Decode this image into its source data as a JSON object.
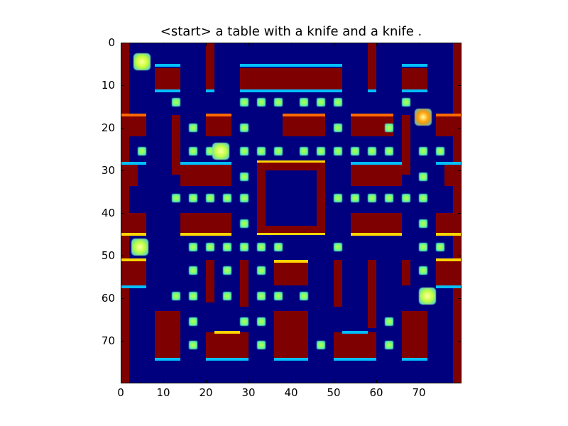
{
  "title": "<start> a table with a knife and a knife .",
  "axes": {
    "x_ticks": [
      "0",
      "10",
      "20",
      "30",
      "40",
      "50",
      "60",
      "70"
    ],
    "y_ticks": [
      "0",
      "10",
      "20",
      "30",
      "40",
      "50",
      "60",
      "70"
    ],
    "xlim": [
      0,
      80
    ],
    "ylim": [
      80,
      0
    ]
  },
  "colors": {
    "background": "#00007f",
    "wall": "#7f0000",
    "pellet": "#7dff7a",
    "edge_cyan": "#00bfff",
    "edge_yellow": "#ffd400"
  },
  "game": {
    "sprites": [
      {
        "name": "player-sprite",
        "x": 5,
        "y": 4.5,
        "color": "#c8ff30"
      },
      {
        "name": "ghost-sprite-1",
        "x": 71,
        "y": 17.5,
        "color": "#ff9a00"
      },
      {
        "name": "ghost-sprite-2",
        "x": 23.5,
        "y": 25.5,
        "color": "#c0ff40"
      },
      {
        "name": "ghost-sprite-3",
        "x": 4.5,
        "y": 48,
        "color": "#b8ff40"
      },
      {
        "name": "ghost-sprite-4",
        "x": 72,
        "y": 59.5,
        "color": "#c0ff40"
      }
    ],
    "pellets": [
      [
        13,
        14
      ],
      [
        29,
        14
      ],
      [
        33,
        14
      ],
      [
        37,
        14
      ],
      [
        43,
        14
      ],
      [
        47,
        14
      ],
      [
        51,
        14
      ],
      [
        67,
        14
      ],
      [
        17,
        20
      ],
      [
        29,
        20
      ],
      [
        51,
        20
      ],
      [
        63,
        20
      ],
      [
        5,
        25.5
      ],
      [
        17,
        25.5
      ],
      [
        21,
        25.5
      ],
      [
        29,
        25.5
      ],
      [
        33,
        25.5
      ],
      [
        37,
        25.5
      ],
      [
        43,
        25.5
      ],
      [
        47,
        25.5
      ],
      [
        51,
        25.5
      ],
      [
        55,
        25.5
      ],
      [
        59,
        25.5
      ],
      [
        63,
        25.5
      ],
      [
        71,
        25.5
      ],
      [
        75,
        25.5
      ],
      [
        29,
        31.5
      ],
      [
        71,
        31.5
      ],
      [
        13,
        36.5
      ],
      [
        17,
        36.5
      ],
      [
        21,
        36.5
      ],
      [
        25,
        36.5
      ],
      [
        29,
        36.5
      ],
      [
        51,
        36.5
      ],
      [
        55,
        36.5
      ],
      [
        59,
        36.5
      ],
      [
        63,
        36.5
      ],
      [
        67,
        36.5
      ],
      [
        71,
        36.5
      ],
      [
        29,
        42.5
      ],
      [
        71,
        42.5
      ],
      [
        17,
        48
      ],
      [
        21,
        48
      ],
      [
        25,
        48
      ],
      [
        29,
        48
      ],
      [
        33,
        48
      ],
      [
        37,
        48
      ],
      [
        51,
        48
      ],
      [
        71,
        48
      ],
      [
        75,
        48
      ],
      [
        17,
        53.5
      ],
      [
        25,
        53.5
      ],
      [
        33,
        53.5
      ],
      [
        71,
        53.5
      ],
      [
        13,
        59.5
      ],
      [
        17,
        59.5
      ],
      [
        25,
        59.5
      ],
      [
        33,
        59.5
      ],
      [
        37,
        59.5
      ],
      [
        43,
        59.5
      ],
      [
        17,
        65.5
      ],
      [
        29,
        65.5
      ],
      [
        33,
        65.5
      ],
      [
        63,
        65.5
      ],
      [
        17,
        71
      ],
      [
        33,
        71
      ],
      [
        47,
        71
      ],
      [
        63,
        71
      ]
    ]
  }
}
